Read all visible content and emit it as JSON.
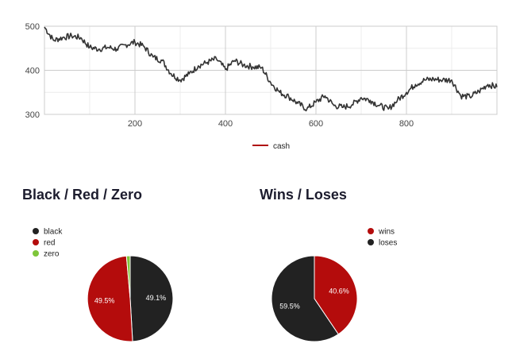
{
  "chart_data": [
    {
      "type": "line",
      "xlim": [
        0,
        1000
      ],
      "ylim": [
        300,
        500
      ],
      "xticks": [
        200,
        400,
        600,
        800
      ],
      "yticks": [
        300,
        400,
        500
      ],
      "grid": true,
      "legend_position": "bottom",
      "series": [
        {
          "name": "cash",
          "color": "#333333",
          "legend_color": "#b01010",
          "x": [
            0,
            20,
            40,
            60,
            80,
            100,
            120,
            140,
            160,
            180,
            200,
            220,
            240,
            260,
            280,
            300,
            320,
            340,
            360,
            380,
            400,
            420,
            440,
            460,
            480,
            500,
            520,
            540,
            560,
            580,
            600,
            620,
            640,
            660,
            680,
            700,
            720,
            740,
            760,
            780,
            800,
            820,
            840,
            860,
            880,
            900,
            920,
            940,
            960,
            980,
            1000
          ],
          "y": [
            498,
            468,
            474,
            478,
            474,
            452,
            448,
            452,
            448,
            458,
            464,
            454,
            430,
            422,
            392,
            378,
            392,
            410,
            418,
            426,
            402,
            422,
            412,
            408,
            406,
            372,
            350,
            340,
            325,
            312,
            328,
            342,
            320,
            316,
            322,
            338,
            332,
            320,
            312,
            332,
            350,
            368,
            378,
            380,
            378,
            378,
            342,
            340,
            352,
            368,
            362
          ]
        }
      ]
    },
    {
      "type": "pie",
      "title": "Black / Red / Zero",
      "legend_position": "top-left",
      "slices": [
        {
          "label": "black",
          "value": 49.1,
          "color": "#222222",
          "display": "49.1%"
        },
        {
          "label": "red",
          "value": 49.5,
          "color": "#b40c0c",
          "display": "49.5%"
        },
        {
          "label": "zero",
          "value": 1.4,
          "color": "#7ec63a",
          "display": ""
        }
      ]
    },
    {
      "type": "pie",
      "title": "Wins / Loses",
      "legend_position": "top-right",
      "slices": [
        {
          "label": "wins",
          "value": 40.6,
          "color": "#b40c0c",
          "display": "40.6%"
        },
        {
          "label": "loses",
          "value": 59.5,
          "color": "#222222",
          "display": "59.5%"
        }
      ]
    }
  ]
}
